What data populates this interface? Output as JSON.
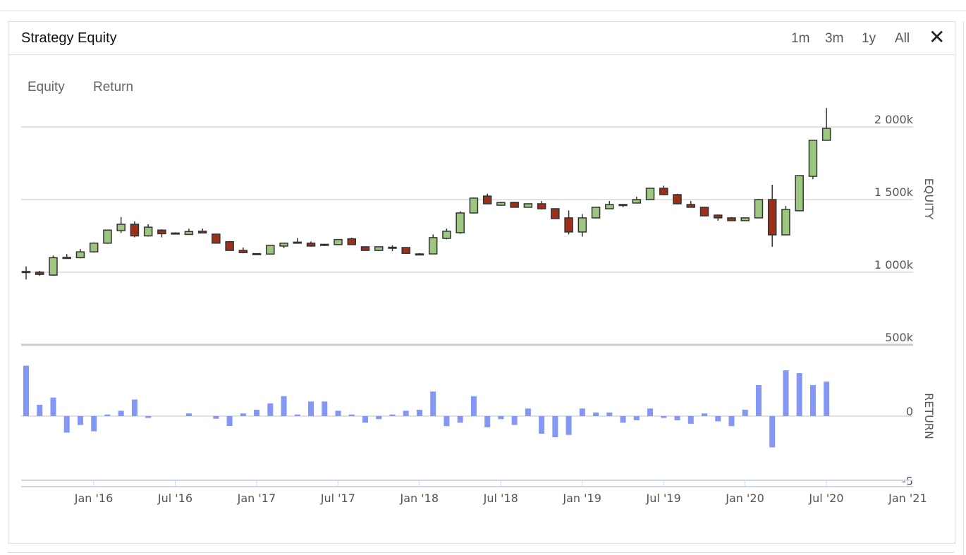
{
  "header": {
    "title": "Strategy Equity",
    "ranges": [
      "1m",
      "3m",
      "1y",
      "All"
    ],
    "close_icon": "close-icon"
  },
  "tabs": [
    "Equity",
    "Return"
  ],
  "colors": {
    "up": "#9dc680",
    "down": "#9c2f19",
    "wick": "#333333",
    "return": "#8497f5",
    "grid": "#d8d8d8"
  },
  "chart_data": [
    {
      "type": "candlestick",
      "title": "Strategy Equity",
      "ylabel": "EQUITY",
      "ylim": [
        500,
        2100
      ],
      "yticks": [
        {
          "v": 2000,
          "label": "2 000k"
        },
        {
          "v": 1500,
          "label": "1 500k"
        },
        {
          "v": 1000,
          "label": "1 000k"
        },
        {
          "v": 500,
          "label": "500k"
        }
      ],
      "units": "k",
      "start_month": "2015-08",
      "interval": "monthly",
      "ohlc": [
        [
          1005,
          1040,
          950,
          1002
        ],
        [
          1000,
          1010,
          975,
          985
        ],
        [
          980,
          1115,
          975,
          1100
        ],
        [
          1100,
          1125,
          1095,
          1102
        ],
        [
          1100,
          1160,
          1095,
          1140
        ],
        [
          1140,
          1205,
          1135,
          1200
        ],
        [
          1200,
          1290,
          1195,
          1290
        ],
        [
          1286,
          1380,
          1270,
          1330
        ],
        [
          1330,
          1350,
          1240,
          1250
        ],
        [
          1250,
          1330,
          1245,
          1310
        ],
        [
          1290,
          1295,
          1240,
          1265
        ],
        [
          1268,
          1275,
          1260,
          1270
        ],
        [
          1260,
          1300,
          1258,
          1280
        ],
        [
          1282,
          1300,
          1270,
          1270
        ],
        [
          1262,
          1265,
          1200,
          1200
        ],
        [
          1210,
          1215,
          1150,
          1150
        ],
        [
          1150,
          1170,
          1130,
          1135
        ],
        [
          1128,
          1130,
          1122,
          1125
        ],
        [
          1125,
          1185,
          1122,
          1185
        ],
        [
          1180,
          1200,
          1165,
          1200
        ],
        [
          1205,
          1235,
          1202,
          1207
        ],
        [
          1200,
          1212,
          1175,
          1180
        ],
        [
          1188,
          1195,
          1180,
          1192
        ],
        [
          1190,
          1228,
          1188,
          1225
        ],
        [
          1230,
          1238,
          1188,
          1190
        ],
        [
          1175,
          1178,
          1148,
          1150
        ],
        [
          1150,
          1178,
          1145,
          1175
        ],
        [
          1168,
          1185,
          1145,
          1172
        ],
        [
          1170,
          1172,
          1128,
          1130
        ],
        [
          1122,
          1132,
          1118,
          1126
        ],
        [
          1126,
          1260,
          1124,
          1238
        ],
        [
          1233,
          1300,
          1226,
          1282
        ],
        [
          1272,
          1420,
          1265,
          1408
        ],
        [
          1408,
          1515,
          1405,
          1510
        ],
        [
          1524,
          1540,
          1468,
          1471
        ],
        [
          1461,
          1485,
          1458,
          1480
        ],
        [
          1481,
          1484,
          1445,
          1447
        ],
        [
          1447,
          1473,
          1444,
          1471
        ],
        [
          1471,
          1490,
          1432,
          1437
        ],
        [
          1437,
          1440,
          1366,
          1369
        ],
        [
          1374,
          1425,
          1260,
          1277
        ],
        [
          1277,
          1400,
          1245,
          1374
        ],
        [
          1374,
          1450,
          1370,
          1447
        ],
        [
          1437,
          1490,
          1434,
          1466
        ],
        [
          1466,
          1470,
          1448,
          1464
        ],
        [
          1476,
          1520,
          1474,
          1500
        ],
        [
          1500,
          1580,
          1498,
          1578
        ],
        [
          1578,
          1595,
          1530,
          1534
        ],
        [
          1534,
          1540,
          1468,
          1471
        ],
        [
          1466,
          1490,
          1444,
          1447
        ],
        [
          1447,
          1450,
          1385,
          1388
        ],
        [
          1393,
          1397,
          1355,
          1374
        ],
        [
          1374,
          1380,
          1352,
          1355
        ],
        [
          1355,
          1376,
          1352,
          1374
        ],
        [
          1374,
          1505,
          1372,
          1500
        ],
        [
          1500,
          1602,
          1175,
          1257
        ],
        [
          1257,
          1456,
          1254,
          1432
        ],
        [
          1423,
          1665,
          1420,
          1665
        ],
        [
          1660,
          1908,
          1640,
          1908
        ],
        [
          1908,
          2130,
          1905,
          1990
        ]
      ]
    },
    {
      "type": "bar",
      "ylabel": "RETURN",
      "ylim": [
        -5,
        4
      ],
      "yticks": [
        {
          "v": 0,
          "label": "0"
        },
        {
          "v": -5,
          "label": "-5"
        }
      ],
      "values": [
        3.8,
        0.85,
        1.4,
        -1.25,
        -0.67,
        -1.15,
        0.12,
        0.4,
        1.25,
        -0.14,
        0,
        0,
        0.2,
        0,
        -0.2,
        -0.75,
        0.2,
        0.48,
        0.95,
        1.5,
        0.12,
        1.1,
        1.1,
        0.4,
        0.12,
        -0.5,
        -0.23,
        0.12,
        0.4,
        0.48,
        1.85,
        -0.76,
        -0.5,
        1.5,
        -0.85,
        -0.23,
        -0.67,
        0.57,
        -1.33,
        -1.6,
        -1.42,
        0.57,
        0.27,
        0.27,
        -0.5,
        -0.32,
        0.57,
        -0.14,
        -0.32,
        -0.58,
        0.2,
        -0.4,
        -0.76,
        0.48,
        2.34,
        -2.36,
        3.45,
        3.24,
        2.34,
        2.6
      ]
    },
    {
      "type": "axis",
      "xticks": [
        "Jan '16",
        "Jul '16",
        "Jan '17",
        "Jul '17",
        "Jan '18",
        "Jul '18",
        "Jan '19",
        "Jul '19",
        "Jan '20",
        "Jul '20",
        "Jan '21"
      ]
    }
  ]
}
